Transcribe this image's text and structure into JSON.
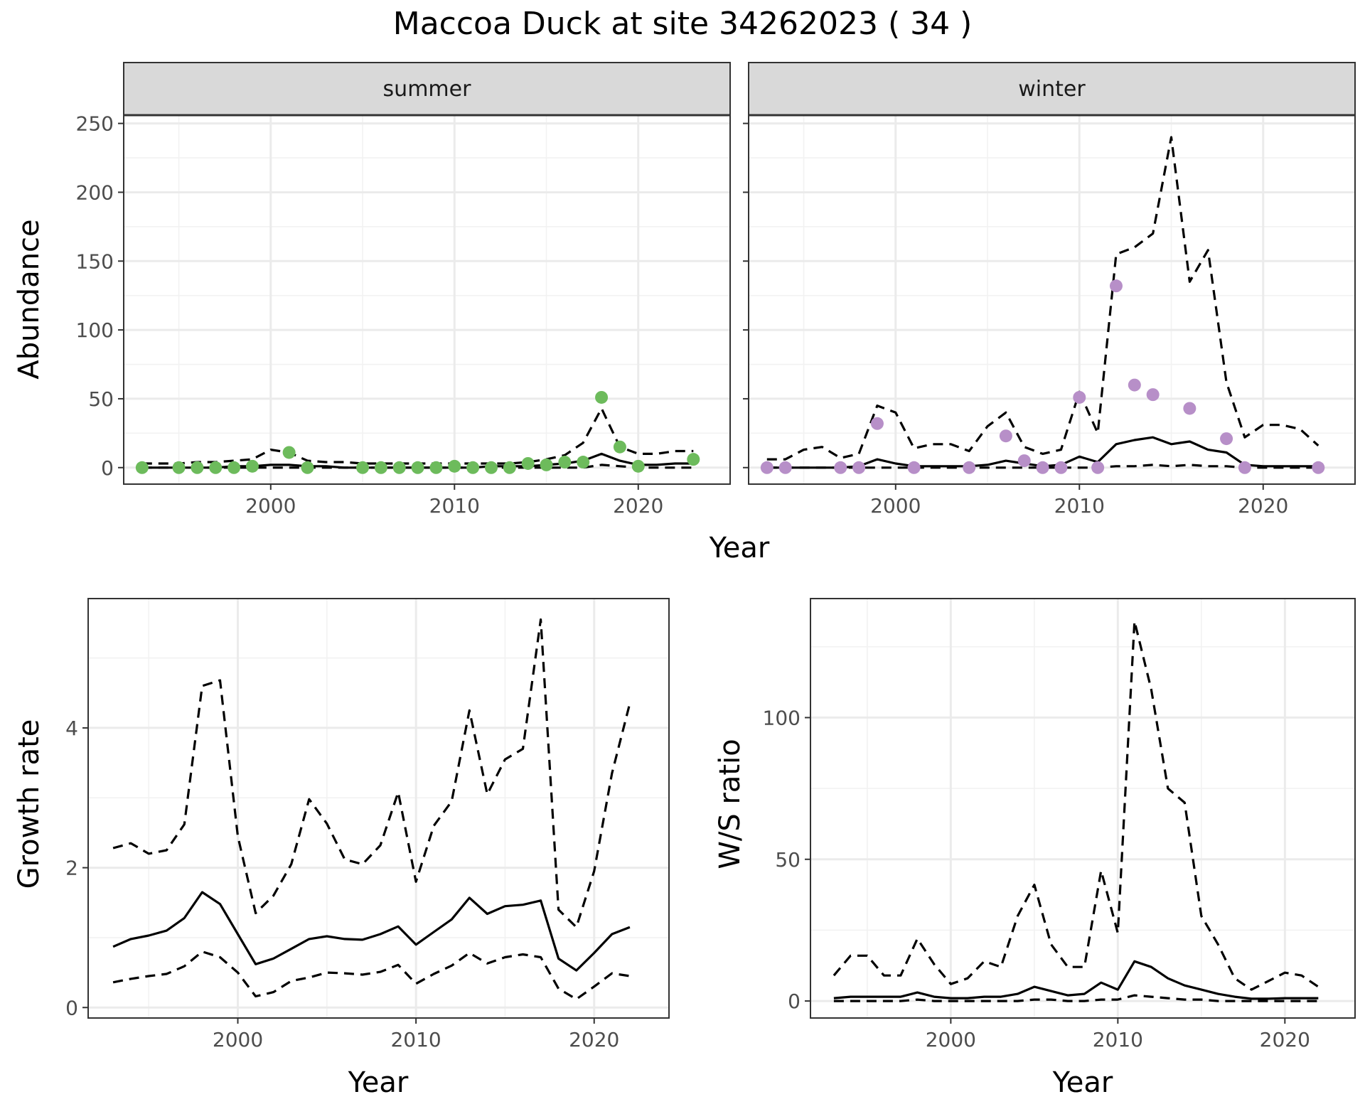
{
  "title": "Maccoa Duck at site 34262023 ( 34 )",
  "colors": {
    "summer_points": "#6dbb5c",
    "winter_points": "#b78fc8",
    "lines": "#000000",
    "strip_fill": "#d9d9d9"
  },
  "chart_data": [
    {
      "id": "summer",
      "type": "line",
      "strip_label": "summer",
      "xlabel": "Year",
      "ylabel": "Abundance",
      "xlim": [
        1992,
        2025
      ],
      "ylim": [
        -12,
        256
      ],
      "x_ticks": [
        2000,
        2010,
        2020
      ],
      "y_ticks": [
        0,
        50,
        100,
        150,
        200,
        250
      ],
      "x": [
        1993,
        1994,
        1995,
        1996,
        1997,
        1998,
        1999,
        2000,
        2001,
        2002,
        2003,
        2004,
        2005,
        2006,
        2007,
        2008,
        2009,
        2010,
        2011,
        2012,
        2013,
        2014,
        2015,
        2016,
        2017,
        2018,
        2019,
        2020,
        2021,
        2022,
        2023
      ],
      "series": [
        {
          "role": "upper",
          "values": [
            3,
            3,
            3,
            4,
            4,
            5,
            6,
            13,
            11,
            5,
            4,
            4,
            3,
            3,
            3,
            3,
            3,
            3,
            3,
            3,
            3,
            4,
            6,
            9,
            18,
            43,
            15,
            10,
            10,
            12,
            12
          ]
        },
        {
          "role": "mean",
          "values": [
            0,
            0,
            0,
            0,
            0,
            1,
            1,
            2,
            2,
            1,
            1,
            0,
            0,
            0,
            0,
            0,
            0,
            0,
            0,
            1,
            1,
            1,
            2,
            3,
            5,
            10,
            5,
            2,
            2,
            3,
            3
          ]
        },
        {
          "role": "lower",
          "values": [
            0,
            0,
            0,
            0,
            0,
            0,
            0,
            0,
            0,
            0,
            0,
            0,
            0,
            0,
            0,
            0,
            0,
            0,
            0,
            0,
            0,
            0,
            0,
            0,
            0,
            2,
            1,
            0,
            0,
            0,
            0
          ]
        }
      ],
      "points": {
        "x": [
          1993,
          1995,
          1996,
          1997,
          1998,
          1999,
          2001,
          2002,
          2005,
          2006,
          2007,
          2008,
          2009,
          2010,
          2011,
          2012,
          2013,
          2014,
          2015,
          2016,
          2017,
          2018,
          2019,
          2020,
          2023
        ],
        "y": [
          0,
          0,
          0,
          0,
          0,
          1,
          11,
          0,
          0,
          0,
          0,
          0,
          0,
          1,
          0,
          0,
          0,
          3,
          2,
          4,
          4,
          51,
          15,
          1,
          6
        ]
      }
    },
    {
      "id": "winter",
      "type": "line",
      "strip_label": "winter",
      "xlabel": "Year",
      "ylabel": "",
      "xlim": [
        1992,
        2025
      ],
      "ylim": [
        -12,
        256
      ],
      "x_ticks": [
        2000,
        2010,
        2020
      ],
      "y_ticks": [
        0,
        50,
        100,
        150,
        200,
        250
      ],
      "x": [
        1993,
        1994,
        1995,
        1996,
        1997,
        1998,
        1999,
        2000,
        2001,
        2002,
        2003,
        2004,
        2005,
        2006,
        2007,
        2008,
        2009,
        2010,
        2011,
        2012,
        2013,
        2014,
        2015,
        2016,
        2017,
        2018,
        2019,
        2020,
        2021,
        2022,
        2023
      ],
      "series": [
        {
          "role": "upper",
          "values": [
            6,
            6,
            13,
            15,
            7,
            10,
            45,
            40,
            14,
            17,
            17,
            12,
            30,
            40,
            15,
            10,
            13,
            55,
            25,
            155,
            160,
            170,
            240,
            135,
            158,
            62,
            22,
            31,
            31,
            28,
            16
          ]
        },
        {
          "role": "mean",
          "values": [
            0,
            0,
            0,
            0,
            0,
            1,
            6,
            3,
            1,
            1,
            1,
            1,
            2,
            5,
            3,
            1,
            2,
            8,
            4,
            17,
            20,
            22,
            17,
            19,
            13,
            11,
            2,
            1,
            1,
            1,
            1
          ]
        },
        {
          "role": "lower",
          "values": [
            0,
            0,
            0,
            0,
            0,
            0,
            0,
            0,
            0,
            0,
            0,
            0,
            0,
            0,
            0,
            0,
            0,
            0,
            0,
            1,
            1,
            2,
            1,
            2,
            1,
            1,
            0,
            0,
            0,
            0,
            0
          ]
        }
      ],
      "points": {
        "x": [
          1993,
          1994,
          1997,
          1998,
          1999,
          2001,
          2004,
          2006,
          2007,
          2008,
          2009,
          2010,
          2011,
          2012,
          2013,
          2014,
          2016,
          2018,
          2019,
          2023
        ],
        "y": [
          0,
          0,
          0,
          0,
          32,
          0,
          0,
          23,
          5,
          0,
          0,
          51,
          0,
          132,
          60,
          53,
          43,
          21,
          0,
          0
        ]
      }
    },
    {
      "id": "growth",
      "type": "line",
      "xlabel": "Year",
      "ylabel": "Growth rate",
      "xlim": [
        1991.6,
        2024.2
      ],
      "ylim": [
        -0.15,
        5.85
      ],
      "x_ticks": [
        2000,
        2010,
        2020
      ],
      "y_ticks": [
        0,
        2,
        4
      ],
      "x": [
        1993,
        1994,
        1995,
        1996,
        1997,
        1998,
        1999,
        2000,
        2001,
        2002,
        2003,
        2004,
        2005,
        2006,
        2007,
        2008,
        2009,
        2010,
        2011,
        2012,
        2013,
        2014,
        2015,
        2016,
        2017,
        2018,
        2019,
        2020,
        2021,
        2022
      ],
      "series": [
        {
          "role": "upper",
          "values": [
            2.28,
            2.35,
            2.2,
            2.25,
            2.62,
            4.6,
            4.68,
            2.45,
            1.35,
            1.6,
            2.05,
            2.98,
            2.63,
            2.12,
            2.05,
            2.32,
            3.08,
            1.8,
            2.6,
            2.95,
            4.25,
            3.05,
            3.55,
            3.7,
            5.55,
            1.4,
            1.15,
            1.95,
            3.35,
            4.35
          ]
        },
        {
          "role": "mean",
          "values": [
            0.87,
            0.98,
            1.03,
            1.1,
            1.28,
            1.65,
            1.48,
            1.05,
            0.62,
            0.7,
            0.84,
            0.98,
            1.02,
            0.98,
            0.97,
            1.05,
            1.16,
            0.9,
            1.08,
            1.26,
            1.57,
            1.34,
            1.45,
            1.47,
            1.53,
            0.7,
            0.53,
            0.78,
            1.05,
            1.15
          ]
        },
        {
          "role": "lower",
          "values": [
            0.36,
            0.41,
            0.45,
            0.48,
            0.59,
            0.8,
            0.72,
            0.5,
            0.16,
            0.22,
            0.38,
            0.43,
            0.5,
            0.49,
            0.47,
            0.51,
            0.61,
            0.34,
            0.48,
            0.6,
            0.78,
            0.63,
            0.72,
            0.76,
            0.72,
            0.27,
            0.12,
            0.3,
            0.49,
            0.45
          ]
        }
      ]
    },
    {
      "id": "ws",
      "type": "line",
      "xlabel": "Year",
      "ylabel": "W/S ratio",
      "xlim": [
        1991.6,
        2024.2
      ],
      "ylim": [
        -6,
        142
      ],
      "x_ticks": [
        2000,
        2010,
        2020
      ],
      "y_ticks": [
        0,
        50,
        100
      ],
      "x": [
        1993,
        1994,
        1995,
        1996,
        1997,
        1998,
        1999,
        2000,
        2001,
        2002,
        2003,
        2004,
        2005,
        2006,
        2007,
        2008,
        2009,
        2010,
        2011,
        2012,
        2013,
        2014,
        2015,
        2016,
        2017,
        2018,
        2019,
        2020,
        2021,
        2022
      ],
      "series": [
        {
          "role": "upper",
          "values": [
            9,
            16,
            16,
            9,
            9,
            22,
            13,
            6,
            8,
            14,
            12,
            30,
            41,
            20,
            12,
            12,
            46,
            24,
            134,
            110,
            75,
            70,
            30,
            20,
            8,
            4,
            7,
            10,
            9,
            5
          ]
        },
        {
          "role": "mean",
          "values": [
            1,
            1.5,
            1.5,
            1.5,
            1.5,
            3,
            1.5,
            1,
            1,
            1.5,
            1.5,
            2.5,
            5,
            3.5,
            2,
            2.5,
            6.5,
            4,
            14,
            12,
            8,
            5.5,
            4,
            2.5,
            1.5,
            0.8,
            0.8,
            1,
            1,
            1
          ]
        },
        {
          "role": "lower",
          "values": [
            0,
            0,
            0,
            0,
            0,
            0.5,
            0,
            0,
            0,
            0,
            0,
            0,
            0.5,
            0.5,
            0,
            0,
            0.5,
            0.5,
            2,
            1.5,
            1,
            0.5,
            0.5,
            0,
            0,
            0,
            0,
            0,
            0,
            0
          ]
        }
      ]
    }
  ]
}
